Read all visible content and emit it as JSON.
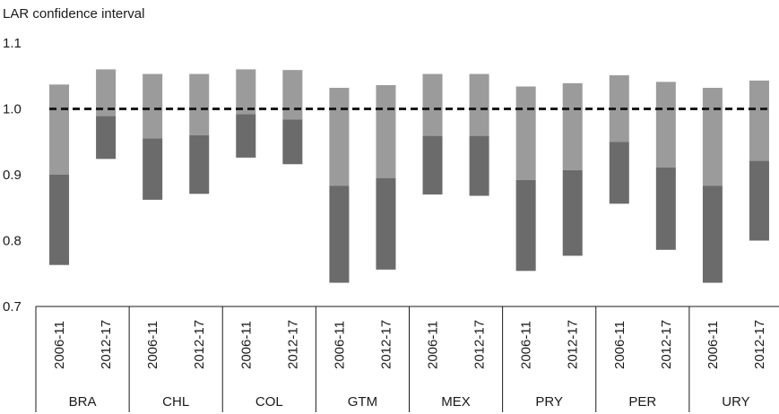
{
  "chart_data": {
    "type": "bar",
    "ylabel": "LAR confidence interval",
    "ylim": [
      0.7,
      1.1
    ],
    "yticks": [
      "0.7",
      "0.8",
      "0.9",
      "1.0",
      "1.1"
    ],
    "reference_line": {
      "value": 1.0,
      "style": "dashed"
    },
    "colors": {
      "upper": "#9b9b9b",
      "lower": "#6b6b6b",
      "reference": "#1a1a1a"
    },
    "groups": [
      {
        "country": "BRA",
        "bars": [
          {
            "period": "2006-11",
            "low": 0.763,
            "mid": 0.9,
            "high": 1.037
          },
          {
            "period": "2012-17",
            "low": 0.924,
            "mid": 0.989,
            "high": 1.06
          }
        ]
      },
      {
        "country": "CHL",
        "bars": [
          {
            "period": "2006-11",
            "low": 0.862,
            "mid": 0.955,
            "high": 1.053
          },
          {
            "period": "2012-17",
            "low": 0.871,
            "mid": 0.96,
            "high": 1.053
          }
        ]
      },
      {
        "country": "COL",
        "bars": [
          {
            "period": "2006-11",
            "low": 0.926,
            "mid": 0.992,
            "high": 1.06
          },
          {
            "period": "2012-17",
            "low": 0.916,
            "mid": 0.984,
            "high": 1.059
          }
        ]
      },
      {
        "country": "GTM",
        "bars": [
          {
            "period": "2006-11",
            "low": 0.736,
            "mid": 0.883,
            "high": 1.032
          },
          {
            "period": "2012-17",
            "low": 0.756,
            "mid": 0.895,
            "high": 1.036
          }
        ]
      },
      {
        "country": "MEX",
        "bars": [
          {
            "period": "2006-11",
            "low": 0.87,
            "mid": 0.959,
            "high": 1.053
          },
          {
            "period": "2012-17",
            "low": 0.868,
            "mid": 0.959,
            "high": 1.053
          }
        ]
      },
      {
        "country": "PRY",
        "bars": [
          {
            "period": "2006-11",
            "low": 0.754,
            "mid": 0.892,
            "high": 1.034
          },
          {
            "period": "2012-17",
            "low": 0.777,
            "mid": 0.907,
            "high": 1.039
          }
        ]
      },
      {
        "country": "PER",
        "bars": [
          {
            "period": "2006-11",
            "low": 0.856,
            "mid": 0.95,
            "high": 1.051
          },
          {
            "period": "2012-17",
            "low": 0.786,
            "mid": 0.911,
            "high": 1.041
          }
        ]
      },
      {
        "country": "URY",
        "bars": [
          {
            "period": "2006-11",
            "low": 0.736,
            "mid": 0.883,
            "high": 1.032
          },
          {
            "period": "2012-17",
            "low": 0.8,
            "mid": 0.921,
            "high": 1.043
          }
        ]
      }
    ]
  }
}
